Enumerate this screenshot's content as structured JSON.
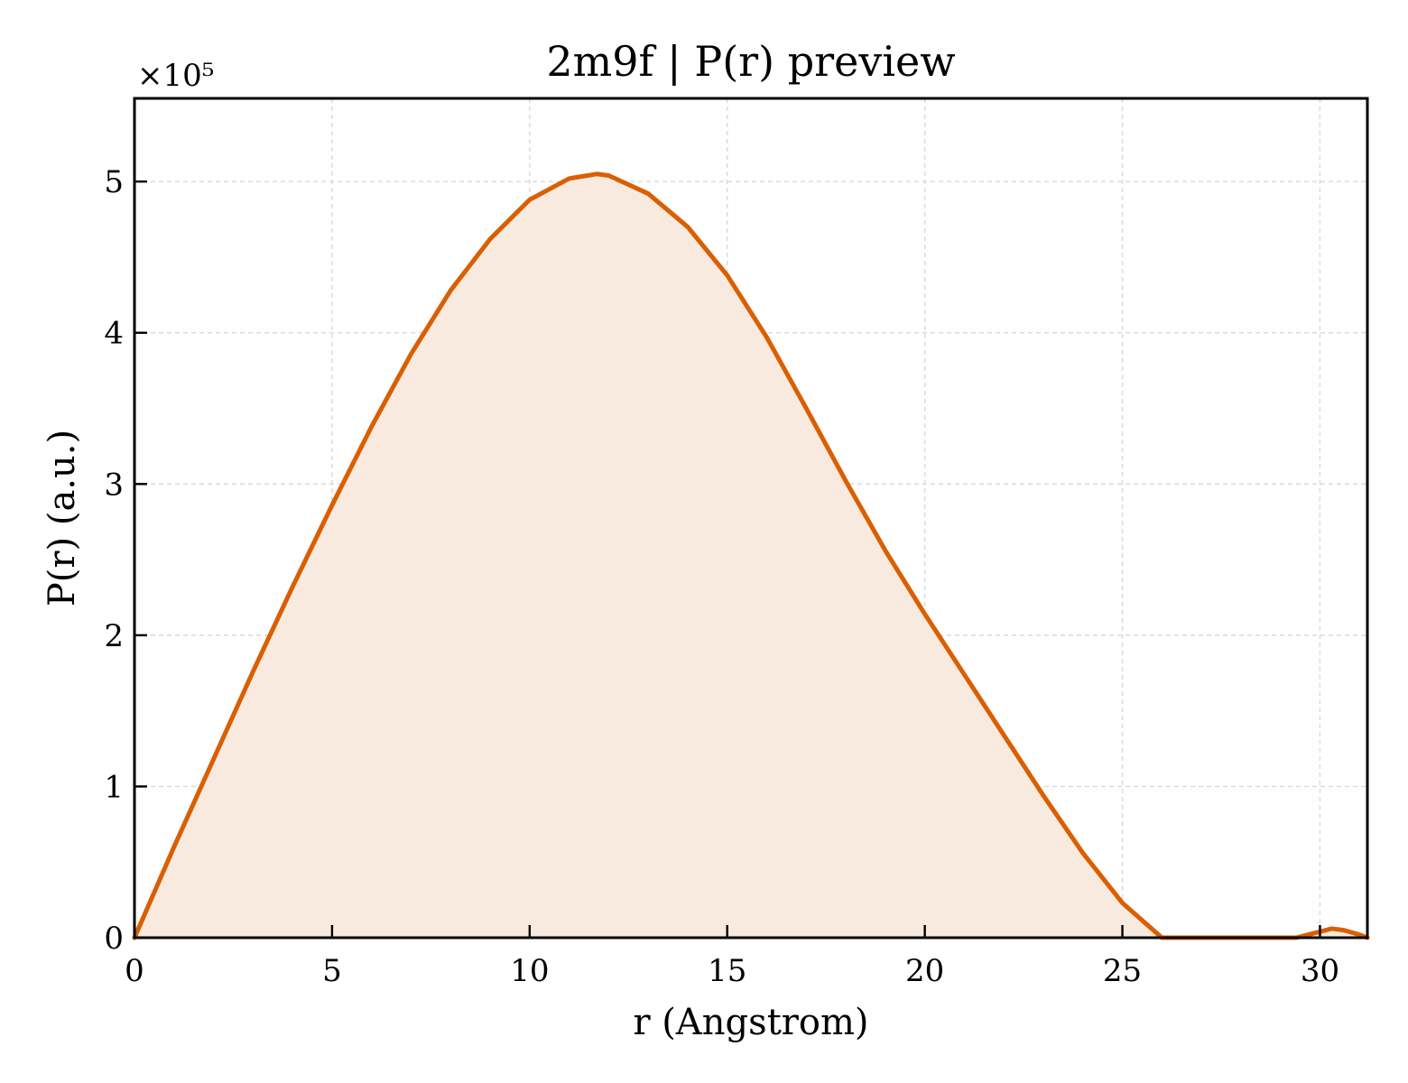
{
  "chart_data": {
    "type": "area",
    "title": "2m9f | P(r) preview",
    "xlabel": "r (Angstrom)",
    "ylabel": "P(r) (a.u.)",
    "y_scale_factor": "×10⁵",
    "xlim": [
      0,
      31.2
    ],
    "ylim": [
      0,
      5.55
    ],
    "x_ticks": [
      0,
      5,
      10,
      15,
      20,
      25,
      30
    ],
    "y_ticks": [
      0,
      1,
      2,
      3,
      4,
      5
    ],
    "grid": true,
    "colors": {
      "line": "#d95f02",
      "fill": "#f9eadf"
    },
    "series": [
      {
        "x": [
          0,
          1,
          2,
          3,
          4,
          5,
          6,
          7,
          8,
          9,
          10,
          11,
          11.7,
          12,
          13,
          14,
          15,
          16,
          17,
          18,
          19,
          20,
          21,
          22,
          23,
          24,
          25,
          26,
          27,
          28,
          29,
          29.4,
          30,
          30.3,
          30.6,
          31,
          31.2
        ],
        "y": [
          0,
          0.6,
          1.18,
          1.76,
          2.32,
          2.86,
          3.38,
          3.86,
          4.28,
          4.62,
          4.88,
          5.02,
          5.05,
          5.04,
          4.92,
          4.7,
          4.38,
          3.97,
          3.5,
          3.02,
          2.56,
          2.14,
          1.74,
          1.34,
          0.94,
          0.56,
          0.23,
          0.0,
          0.0,
          0.0,
          0.0,
          0.0,
          0.04,
          0.06,
          0.05,
          0.02,
          0.0
        ]
      }
    ]
  }
}
